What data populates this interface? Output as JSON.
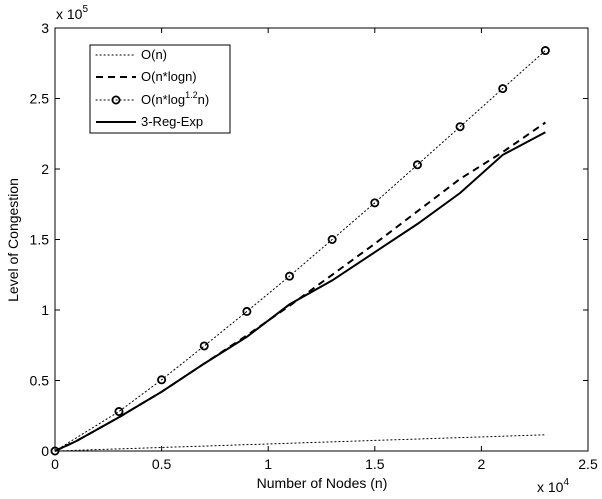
{
  "chart_data": {
    "type": "line",
    "xlabel": "Number of Nodes (n)",
    "ylabel": "Level of Congestion",
    "x_multiplier_label": {
      "base": "x 10",
      "exp": "4"
    },
    "y_multiplier_label": {
      "base": "x 10",
      "exp": "5"
    },
    "xlim": [
      0,
      25000
    ],
    "ylim": [
      0,
      300000
    ],
    "x_ticks": [
      0,
      5000,
      10000,
      15000,
      20000,
      25000
    ],
    "x_tick_labels": [
      "0",
      "0.5",
      "1",
      "1.5",
      "2",
      "2.5"
    ],
    "y_ticks": [
      0,
      50000,
      100000,
      150000,
      200000,
      250000,
      300000
    ],
    "y_tick_labels": [
      "0",
      "0.5",
      "1",
      "1.5",
      "2",
      "2.5",
      "3"
    ],
    "grid": false,
    "legend_position": "top-left",
    "series": [
      {
        "name": "O(n)",
        "style": "dotted",
        "color": "#000000",
        "x": [
          0,
          23000
        ],
        "y": [
          0,
          11500
        ]
      },
      {
        "name": "O(n*logn)",
        "style": "dashed",
        "color": "#000000",
        "x": [
          0,
          1000,
          3000,
          5000,
          7000,
          9000,
          11000,
          13000,
          15000,
          17000,
          19000,
          21000,
          23000
        ],
        "y": [
          0,
          7000,
          24000,
          42000,
          62000,
          82000,
          103000,
          125000,
          147000,
          170000,
          193000,
          212000,
          233000
        ]
      },
      {
        "name_parts": {
          "pre": "O(n*log",
          "sup": "1.2",
          "post": "n)"
        },
        "style": "dotted-circle-markers",
        "color": "#000000",
        "x": [
          0,
          3000,
          5000,
          7000,
          9000,
          11000,
          13000,
          15000,
          17000,
          19000,
          21000,
          23000
        ],
        "y": [
          0,
          28000,
          50500,
          74500,
          99000,
          124000,
          150000,
          176000,
          203000,
          230000,
          257000,
          284000
        ]
      },
      {
        "name": "3-Reg-Exp",
        "style": "solid",
        "color": "#000000",
        "x": [
          0,
          1000,
          3000,
          5000,
          7000,
          9000,
          11000,
          13000,
          15000,
          17000,
          19000,
          21000,
          23000
        ],
        "y": [
          0,
          7000,
          24000,
          42000,
          62000,
          81000,
          104000,
          121000,
          141000,
          161000,
          183000,
          210000,
          226000
        ]
      }
    ]
  }
}
